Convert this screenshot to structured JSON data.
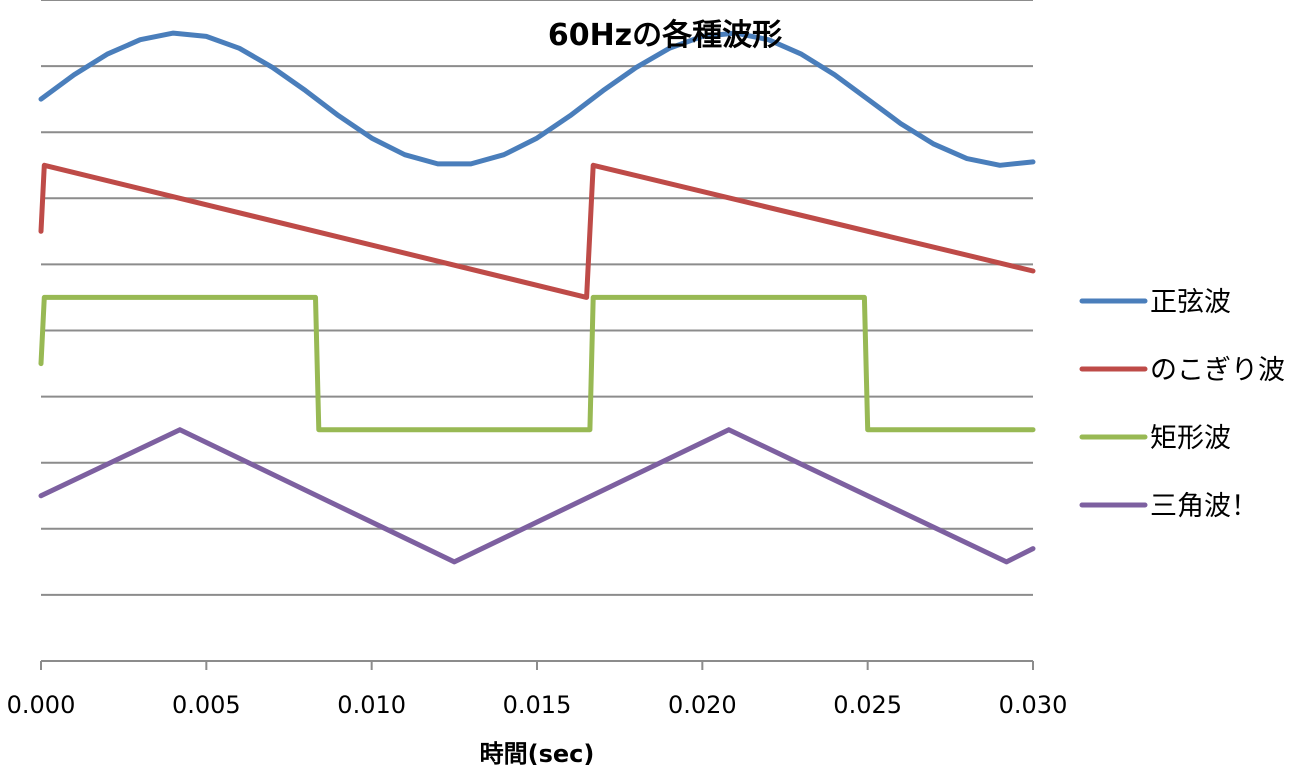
{
  "chart_data": {
    "type": "line",
    "title": "60Hzの各種波形",
    "xlabel": "時間(sec)",
    "ylabel": "",
    "xlim": [
      0,
      0.03
    ],
    "ylim": [
      -8.5,
      1.5
    ],
    "x_ticks": [
      0.0,
      0.005,
      0.01,
      0.015,
      0.02,
      0.025,
      0.03
    ],
    "x_tick_labels": [
      "0.000",
      "0.005",
      "0.010",
      "0.015",
      "0.020",
      "0.025",
      "0.030"
    ],
    "y_grid": [
      1.5,
      0.5,
      -0.5,
      -1.5,
      -2.5,
      -3.5,
      -4.5,
      -5.5,
      -6.5,
      -7.5
    ],
    "grid": true,
    "legend_position": "right",
    "frequency_hz": 60,
    "series": [
      {
        "name": "正弦波",
        "color": "#4a7ebb",
        "x": [
          0.0,
          0.001,
          0.002,
          0.003,
          0.004,
          0.005,
          0.006,
          0.007,
          0.008,
          0.009,
          0.01,
          0.011,
          0.012,
          0.013,
          0.014,
          0.015,
          0.016,
          0.017,
          0.018,
          0.019,
          0.02,
          0.021,
          0.022,
          0.023,
          0.024,
          0.025,
          0.026,
          0.027,
          0.028,
          0.029,
          0.03
        ],
        "y": [
          0.0,
          0.37,
          0.68,
          0.9,
          1.0,
          0.95,
          0.77,
          0.48,
          0.13,
          -0.25,
          -0.59,
          -0.84,
          -0.98,
          -0.98,
          -0.84,
          -0.59,
          -0.25,
          0.13,
          0.48,
          0.77,
          0.95,
          1.0,
          0.9,
          0.68,
          0.37,
          0.0,
          -0.37,
          -0.68,
          -0.9,
          -1.0,
          -0.95
        ]
      },
      {
        "name": "のこぎり波",
        "color": "#be4b48",
        "x": [
          0.0,
          0.0001,
          0.0165,
          0.0167,
          0.03
        ],
        "y": [
          -2.0,
          -1.0,
          -3.0,
          -1.0,
          -2.6
        ]
      },
      {
        "name": "矩形波",
        "color": "#98b954",
        "x": [
          0.0,
          0.0001,
          0.0083,
          0.0084,
          0.0166,
          0.0167,
          0.0249,
          0.025,
          0.03
        ],
        "y": [
          -4.0,
          -3.0,
          -3.0,
          -5.0,
          -5.0,
          -3.0,
          -3.0,
          -5.0,
          -5.0
        ]
      },
      {
        "name": "三角波！",
        "color": "#7d60a0",
        "x": [
          0.0,
          0.0042,
          0.0125,
          0.0208,
          0.0292,
          0.03
        ],
        "y": [
          -6.0,
          -5.0,
          -7.0,
          -5.0,
          -7.0,
          -6.8
        ]
      }
    ]
  }
}
